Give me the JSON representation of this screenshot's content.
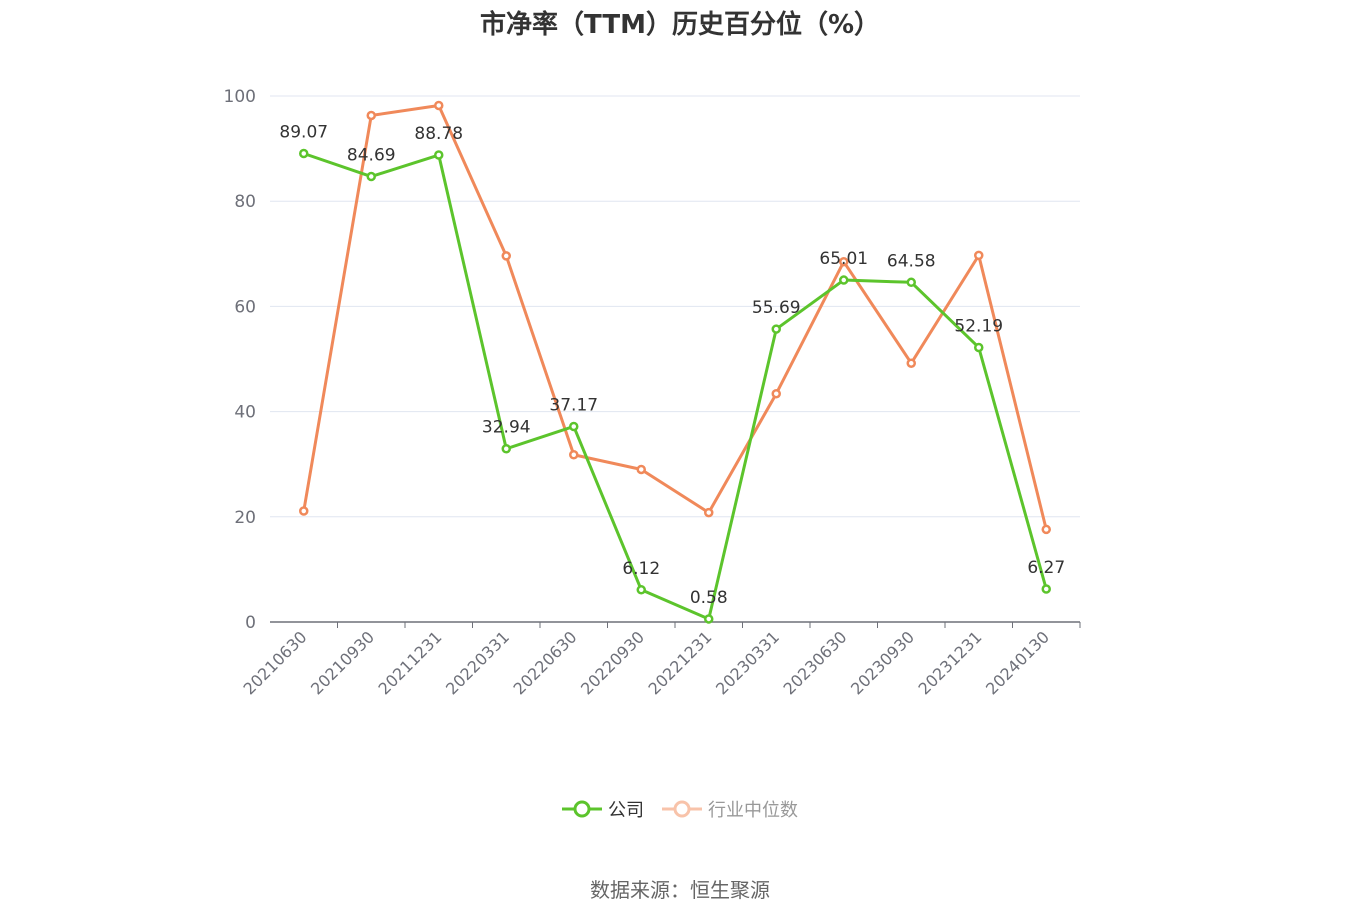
{
  "chart_data": {
    "type": "line",
    "title": "市净率（TTM）历史百分位（%）",
    "categories": [
      "20210630",
      "20210930",
      "20211231",
      "20220331",
      "20220630",
      "20220930",
      "20221231",
      "20230331",
      "20230630",
      "20230930",
      "20231231",
      "20240130"
    ],
    "ylim": [
      0,
      100
    ],
    "yticks": [
      0,
      20,
      40,
      60,
      80,
      100
    ],
    "grid": true,
    "legend_position": "bottom-center",
    "series": [
      {
        "name": "公司",
        "color": "#5cc42c",
        "show_labels": true,
        "values": [
          89.07,
          84.69,
          88.78,
          32.94,
          37.17,
          6.12,
          0.58,
          55.69,
          65.01,
          64.58,
          52.19,
          6.27
        ]
      },
      {
        "name": "行业中位数",
        "color": "#f0895a",
        "show_labels": false,
        "values": [
          21.1,
          96.3,
          98.2,
          69.6,
          31.8,
          29.0,
          20.8,
          43.4,
          68.5,
          49.2,
          69.7,
          17.6
        ]
      }
    ]
  },
  "legend": {
    "company_label": "公司",
    "industry_label": "行业中位数"
  },
  "source": "数据来源：恒生聚源"
}
